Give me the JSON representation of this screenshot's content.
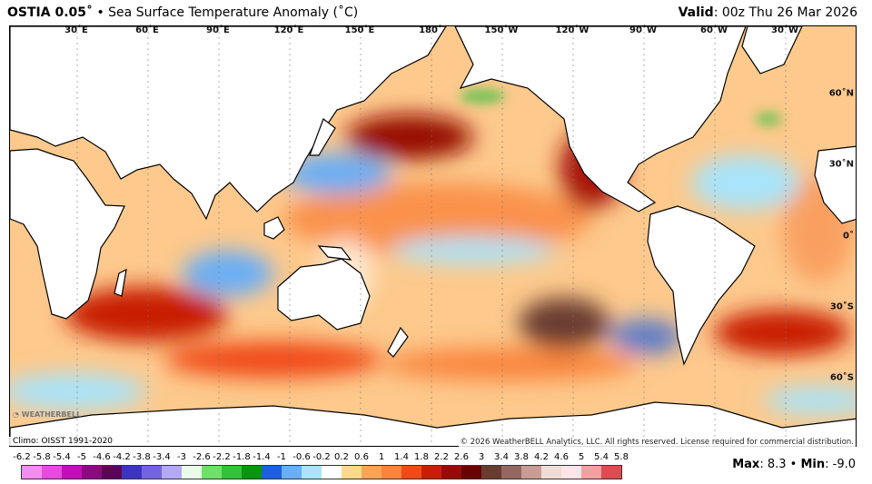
{
  "header": {
    "product": "OSTIA 0.05˚",
    "separator": "•",
    "title": "Sea Surface Temperature Anomaly (˚C)",
    "valid_label": "Valid",
    "valid_value": ": 00z Thu 26 Mar 2026"
  },
  "longitude_labels": [
    "30˚E",
    "60˚E",
    "90˚E",
    "120˚E",
    "150˚E",
    "180˚",
    "150˚W",
    "120˚W",
    "90˚W",
    "60˚W",
    "30˚W"
  ],
  "latitude_labels": [
    "60˚N",
    "30˚N",
    "0˚",
    "30˚S",
    "60˚S"
  ],
  "footer": {
    "climo": "Climo: OISST 1991-2020",
    "copyright": "© 2026 WeatherBELL Analytics, LLC. All rights reserved. License required for commercial distribution.",
    "logo": "WeatherBELL",
    "max_label": "Max",
    "max_value": ": 8.3",
    "min_label": "Min",
    "min_value": ": -9.0",
    "dot": " • "
  },
  "colorbar": {
    "labels": [
      "-6.2",
      "-5.8",
      "-5.4",
      "-5",
      "-4.6",
      "-4.2",
      "-3.8",
      "-3.4",
      "-3",
      "-2.6",
      "-2.2",
      "-1.8",
      "-1.4",
      "-1",
      "-0.6",
      "-0.2",
      "0.2",
      "0.6",
      "1",
      "1.4",
      "1.8",
      "2.2",
      "2.6",
      "3",
      "3.4",
      "3.8",
      "4.2",
      "4.6",
      "5",
      "5.4",
      "5.8"
    ],
    "colors": [
      "#f58cf0",
      "#e64ade",
      "#c20fb8",
      "#8a0a80",
      "#5a0558",
      "#3c34c0",
      "#7463e0",
      "#b3a8f5",
      "#e8fce8",
      "#6fe06a",
      "#33c23a",
      "#0a9410",
      "#1e5ee0",
      "#6aaef5",
      "#a8e4fb",
      "#ffffff",
      "#fdd98a",
      "#fca456",
      "#f9853c",
      "#f04a18",
      "#c81e06",
      "#960c04",
      "#680404",
      "#6a3c30",
      "#946860",
      "#c89c94",
      "#f0dcd4",
      "#fde4e8",
      "#f5a0a0",
      "#dc4c50"
    ]
  }
}
